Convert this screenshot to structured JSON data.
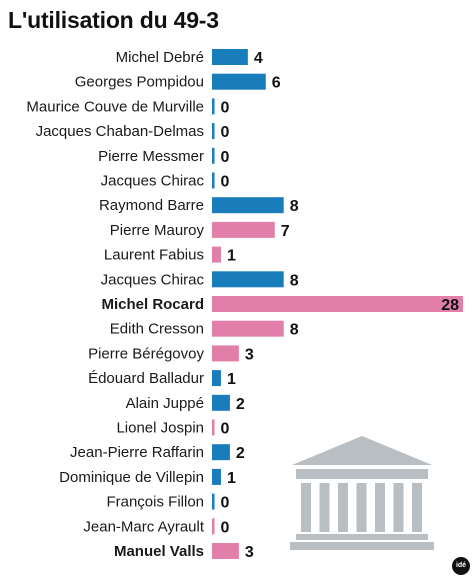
{
  "chart_data": {
    "type": "bar",
    "orientation": "horizontal",
    "title": "L'utilisation du 49-3",
    "categories": [
      "Michel Debré",
      "Georges Pompidou",
      "Maurice Couve de Murville",
      "Jacques Chaban-Delmas",
      "Pierre Messmer",
      "Jacques Chirac",
      "Raymond Barre",
      "Pierre Mauroy",
      "Laurent Fabius",
      "Jacques Chirac",
      "Michel Rocard",
      "Edith Cresson",
      "Pierre Bérégovoy",
      "Édouard Balladur",
      "Alain Juppé",
      "Lionel Jospin",
      "Jean-Pierre Raffarin",
      "Dominique de Villepin",
      "François Fillon",
      "Jean-Marc Ayrault",
      "Manuel Valls"
    ],
    "values": [
      4,
      6,
      0,
      0,
      0,
      0,
      8,
      7,
      1,
      8,
      28,
      8,
      3,
      1,
      2,
      0,
      2,
      1,
      0,
      0,
      3
    ],
    "bar_colors": [
      "blue",
      "blue",
      "blue",
      "blue",
      "blue",
      "blue",
      "blue",
      "pink",
      "pink",
      "blue",
      "pink",
      "pink",
      "pink",
      "blue",
      "blue",
      "pink",
      "blue",
      "blue",
      "blue",
      "pink",
      "pink"
    ],
    "bold_labels": [
      false,
      false,
      false,
      false,
      false,
      false,
      false,
      false,
      false,
      false,
      true,
      false,
      false,
      false,
      false,
      false,
      false,
      false,
      false,
      false,
      true
    ],
    "xlim": [
      0,
      28
    ]
  },
  "colors": {
    "blue": "#1a7dbb",
    "pink": "#e27fa9",
    "building": "#b8bec1"
  },
  "logo_text": "idé"
}
